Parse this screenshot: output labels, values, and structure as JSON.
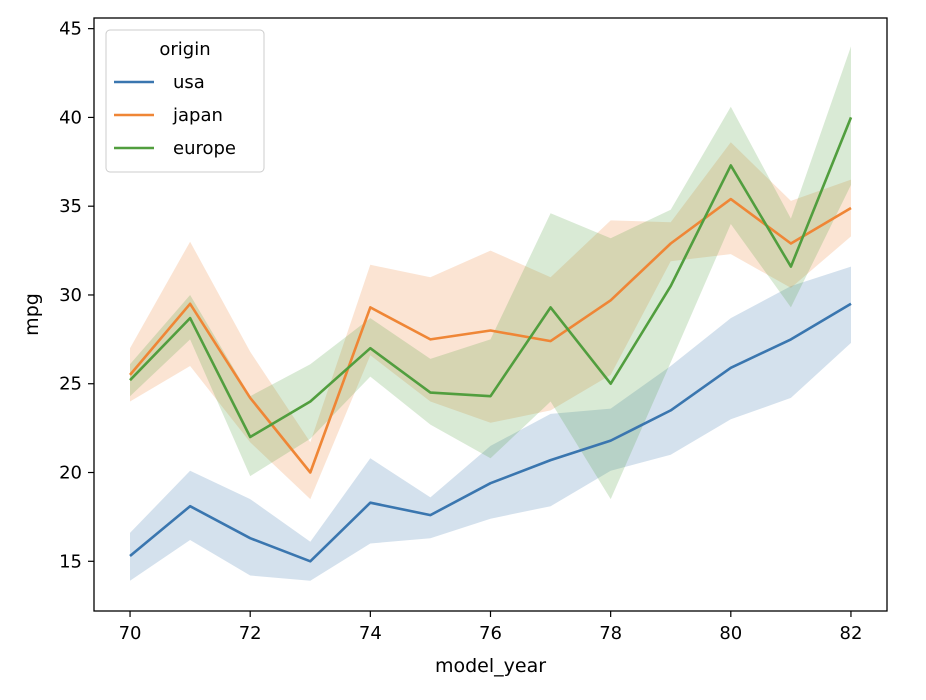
{
  "chart_data": {
    "type": "line",
    "xlabel": "model_year",
    "ylabel": "mpg",
    "xlim": [
      69.4,
      82.6
    ],
    "ylim": [
      12.2,
      45.6
    ],
    "xticks": [
      70,
      72,
      74,
      76,
      78,
      80,
      82
    ],
    "yticks": [
      15,
      20,
      25,
      30,
      35,
      40,
      45
    ],
    "grid": false,
    "legend": {
      "title": "origin",
      "placement": "top-left"
    },
    "x": [
      70,
      71,
      72,
      73,
      74,
      75,
      76,
      77,
      78,
      79,
      80,
      81,
      82
    ],
    "series": [
      {
        "name": "usa",
        "color": "#3a76af",
        "values": [
          15.3,
          18.1,
          16.3,
          15.0,
          18.3,
          17.6,
          19.4,
          20.7,
          21.8,
          23.5,
          25.9,
          27.5,
          29.5
        ],
        "ci_low": [
          13.9,
          16.2,
          14.2,
          13.9,
          16.0,
          16.3,
          17.4,
          18.1,
          20.1,
          21.0,
          23.0,
          24.2,
          27.3
        ],
        "ci_high": [
          16.6,
          20.1,
          18.5,
          16.1,
          20.8,
          18.6,
          21.5,
          23.3,
          23.6,
          26.0,
          28.7,
          30.5,
          31.6
        ]
      },
      {
        "name": "japan",
        "color": "#ef8636",
        "values": [
          25.5,
          29.5,
          24.2,
          20.0,
          29.3,
          27.5,
          28.0,
          27.4,
          29.7,
          32.9,
          35.4,
          32.9,
          34.9
        ],
        "ci_low": [
          24.0,
          26.0,
          21.7,
          18.5,
          26.6,
          24.0,
          22.8,
          23.5,
          25.5,
          31.9,
          32.3,
          30.4,
          33.3
        ],
        "ci_high": [
          27.0,
          33.0,
          26.8,
          21.7,
          31.7,
          31.0,
          32.5,
          31.0,
          34.2,
          34.1,
          38.6,
          35.3,
          36.5
        ]
      },
      {
        "name": "europe",
        "color": "#519e3e",
        "values": [
          25.2,
          28.7,
          22.0,
          24.0,
          27.0,
          24.5,
          24.3,
          29.3,
          25.0,
          30.5,
          37.3,
          31.6,
          40.0
        ],
        "ci_low": [
          24.3,
          27.5,
          19.8,
          21.9,
          25.4,
          22.7,
          20.8,
          24.0,
          18.5,
          26.2,
          34.0,
          29.3,
          36.2
        ],
        "ci_high": [
          26.1,
          30.0,
          24.3,
          26.1,
          28.7,
          26.4,
          27.5,
          34.6,
          33.2,
          34.8,
          40.6,
          34.3,
          44.0
        ]
      }
    ]
  }
}
